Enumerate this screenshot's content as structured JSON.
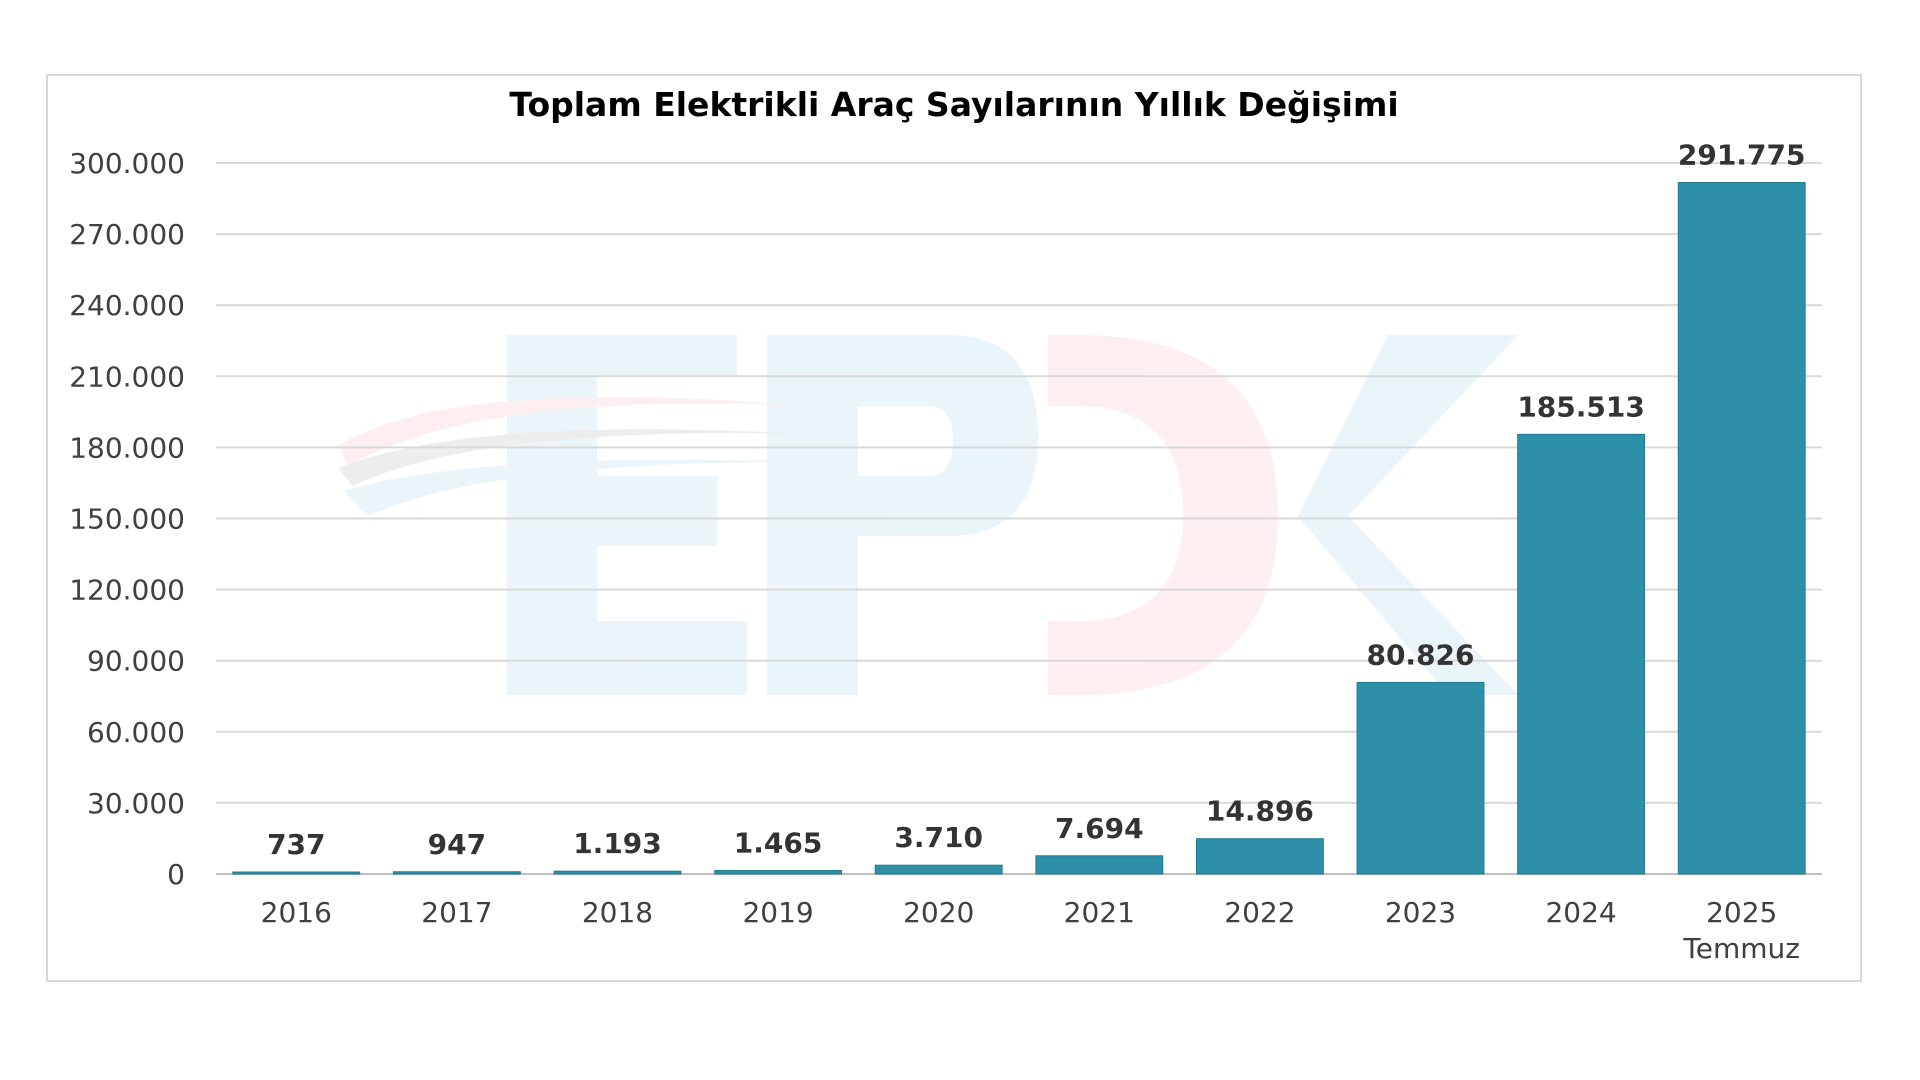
{
  "chart_data": {
    "type": "bar",
    "title": "Toplam Elektrikli Araç Sayılarının Yıllık Değişimi",
    "xlabel": "",
    "ylabel": "",
    "categories": [
      "2016",
      "2017",
      "2018",
      "2019",
      "2020",
      "2021",
      "2022",
      "2023",
      "2024",
      "2025"
    ],
    "category_sublabels": [
      "",
      "",
      "",
      "",
      "",
      "",
      "",
      "",
      "",
      "Temmuz"
    ],
    "values": [
      737,
      947,
      1193,
      1465,
      3710,
      7694,
      14896,
      80826,
      185513,
      291775
    ],
    "value_labels": [
      "737",
      "947",
      "1.193",
      "1.465",
      "3.710",
      "7.694",
      "14.896",
      "80.826",
      "185.513",
      "291.775"
    ],
    "ylim": [
      0,
      300000
    ],
    "yticks": [
      0,
      30000,
      60000,
      90000,
      120000,
      150000,
      180000,
      210000,
      240000,
      270000,
      300000
    ],
    "ytick_labels": [
      "0",
      "30.000",
      "60.000",
      "90.000",
      "120.000",
      "150.000",
      "180.000",
      "210.000",
      "240.000",
      "270.000",
      "300.000"
    ],
    "grid": true,
    "legend": "none",
    "colors": {
      "bar": "#2E8FA8",
      "grid": "#d9d9d9",
      "axis": "#bfbfbf"
    },
    "watermark": "EPDK"
  }
}
